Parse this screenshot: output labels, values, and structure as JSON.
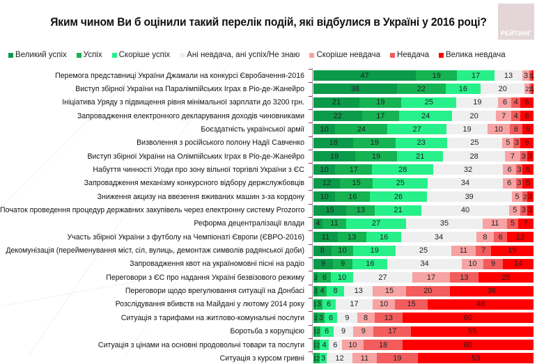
{
  "title": "Яким чином Ви б оцінили такий перелік подій, які відбулися в Україні у 2016 році?",
  "logo_text": "РЕЙТИНГ",
  "chart_data": {
    "type": "bar",
    "orientation": "horizontal",
    "stacked": true,
    "title": "Яким чином Ви б оцінили такий перелік подій, які відбулися в Україні у 2016 році?",
    "xlabel": "",
    "ylabel": "",
    "xlim": [
      0,
      100
    ],
    "grid": false,
    "legend_position": "top",
    "categories": [
      "Перемога представниці України Джамали на конкурсі Євробачення-2016",
      "Виступ збірної України на Паралімпійських Іграх в Ріо-де-Жанейро",
      "Ініціатива Уряду з підвищення рівня мінімальної зарплати до 3200 грн.",
      "Запровадження електронного декларування доходів чиновниками",
      "Боєздатність української армії",
      "Визволення з російського полону Надії Савченко",
      "Виступ збірної України на Олімпійських Іграх в Ріо-де-Жанейро",
      "Набуття чинності Угоди про зону вільної торгівлі України з ЄС",
      "Запровадження механізму конкурсного відбору держслужбовців",
      "Зниження акцизу на ввезення вживаних машин з-за кордону",
      "Початок проведення процедур державних закупівель через електронну систему Prozorro",
      "Реформа децентралізації влади",
      "Участь збірної України з футболу на Чемпіонаті Європи (ЄВРО-2016)",
      "Декомунізація (перейменування міст, сіл, вулиць, демонтаж символів радянської доби)",
      "Запровадження квот на україномовні пісні на радіо",
      "Переговори з ЄС про надання Україні безвізового режиму",
      "Переговори щодо врегулювання ситуації на Донбасі",
      "Розслідування вбивств на Майдані у лютому 2014 року",
      "Ситуація з тарифами на житлово-комунальні послуги",
      "Боротьба з корупцією",
      "Ситуація з цінами на основні продовольчі товари та послуги",
      "Ситуація з курсом гривні"
    ],
    "series": [
      {
        "name": "Великий успіх",
        "color": "#0a9a4a",
        "values": [
          47,
          38,
          21,
          22,
          10,
          18,
          19,
          10,
          12,
          10,
          15,
          4,
          11,
          8,
          9,
          2,
          2,
          1,
          2,
          1,
          1,
          1
        ]
      },
      {
        "name": "Успіх",
        "color": "#15b352",
        "values": [
          19,
          22,
          19,
          17,
          24,
          19,
          19,
          17,
          15,
          16,
          13,
          11,
          13,
          10,
          9,
          6,
          4,
          3,
          3,
          2,
          2,
          2
        ]
      },
      {
        "name": "Скоріше успіх",
        "color": "#27f08a",
        "values": [
          17,
          16,
          25,
          24,
          27,
          23,
          21,
          28,
          25,
          26,
          21,
          27,
          16,
          19,
          16,
          10,
          8,
          6,
          6,
          6,
          4,
          3
        ]
      },
      {
        "name": "Ані невдача, ані успіх/Не знаю",
        "color": "#efefef",
        "values": [
          13,
          20,
          19,
          20,
          19,
          25,
          28,
          32,
          34,
          39,
          40,
          35,
          34,
          25,
          34,
          27,
          13,
          17,
          9,
          9,
          6,
          12
        ]
      },
      {
        "name": "Скоріше невдача",
        "color": "#f7a3a3",
        "values": [
          3,
          2,
          6,
          7,
          10,
          5,
          7,
          6,
          6,
          5,
          5,
          11,
          8,
          11,
          10,
          17,
          15,
          10,
          8,
          9,
          10,
          11
        ]
      },
      {
        "name": "Невдача",
        "color": "#f25c5c",
        "values": [
          1,
          1,
          4,
          4,
          6,
          3,
          3,
          3,
          3,
          2,
          3,
          5,
          6,
          7,
          9,
          13,
          20,
          15,
          13,
          17,
          18,
          19
        ]
      },
      {
        "name": "Велика невдача",
        "color": "#ff0000",
        "values": [
          1,
          1,
          6,
          6,
          5,
          6,
          3,
          5,
          5,
          3,
          3,
          7,
          12,
          19,
          14,
          25,
          38,
          48,
          60,
          55,
          60,
          53
        ]
      }
    ]
  }
}
